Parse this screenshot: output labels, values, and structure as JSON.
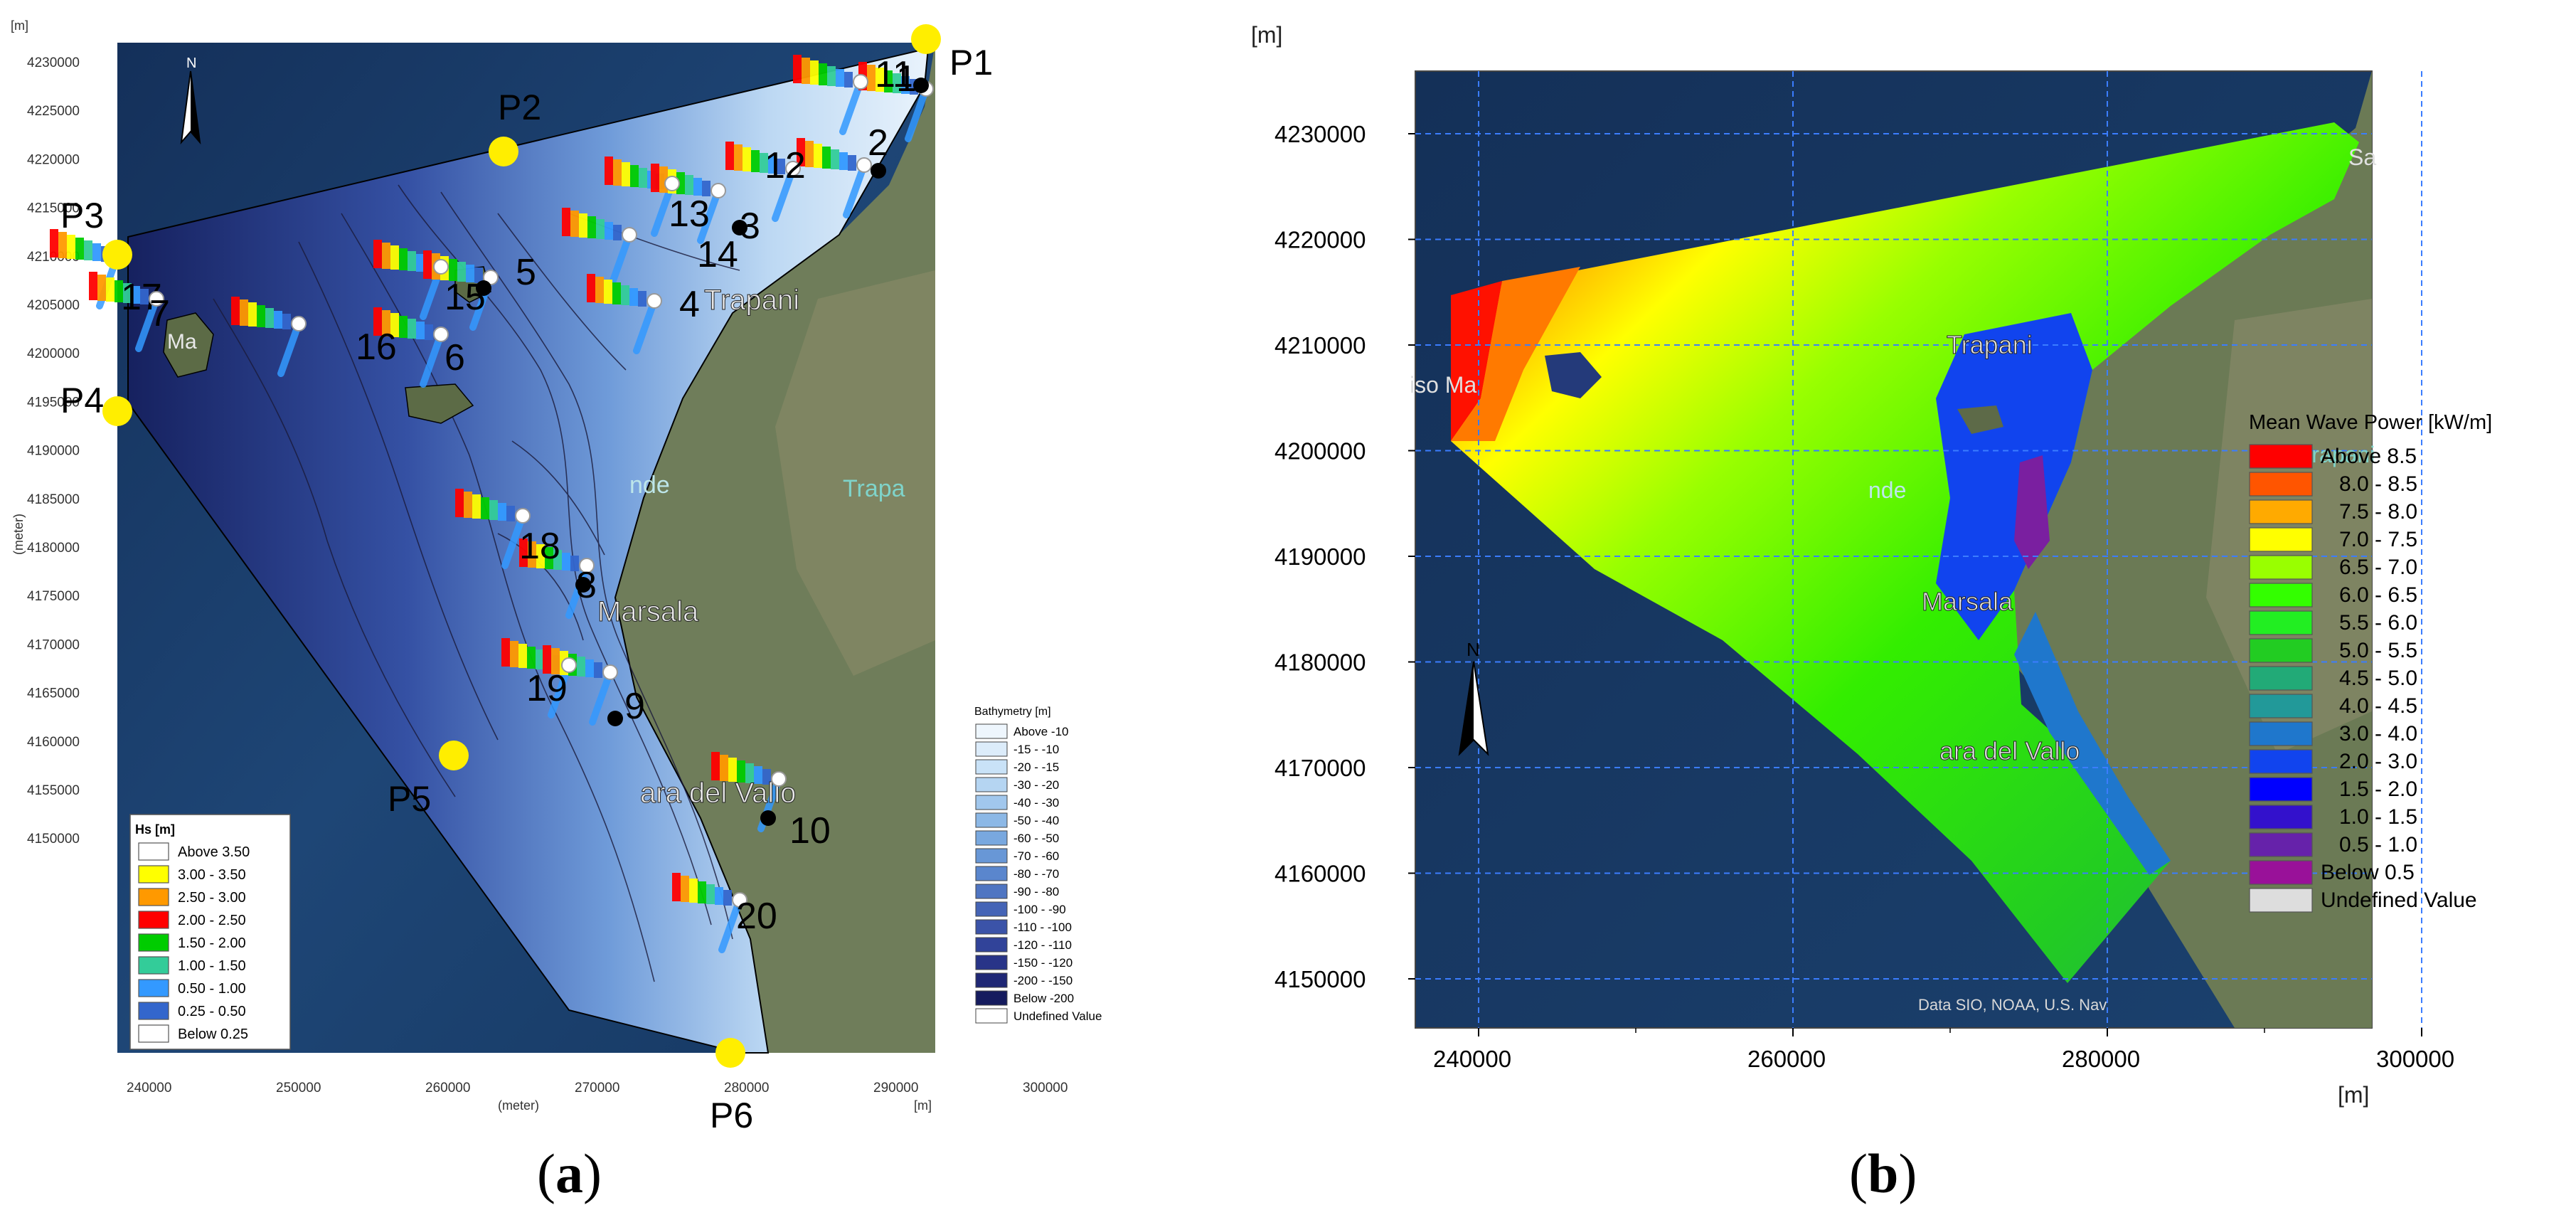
{
  "panel_a": {
    "label": "a",
    "axis_unit_top": "[m]",
    "axis_unit_right": "[m]",
    "x_axis_title": "(meter)",
    "y_axis_title": "(meter)",
    "y_ticks": [
      "4230000",
      "4225000",
      "4220000",
      "4215000",
      "4210000",
      "4205000",
      "4200000",
      "4195000",
      "4190000",
      "4185000",
      "4180000",
      "4175000",
      "4170000",
      "4165000",
      "4160000",
      "4155000",
      "4150000"
    ],
    "x_ticks": [
      "240000",
      "250000",
      "260000",
      "270000",
      "280000",
      "290000",
      "300000"
    ],
    "north_label": "N",
    "points": [
      "P1",
      "P2",
      "P3",
      "P4",
      "P5",
      "P6"
    ],
    "stations": [
      "11",
      "1",
      "2",
      "12",
      "13",
      "3",
      "14",
      "15",
      "5",
      "4",
      "17",
      "7",
      "16",
      "6",
      "18",
      "8",
      "19",
      "9",
      "10",
      "20"
    ],
    "place_labels": [
      "Trapani",
      "Marsala",
      "ara del Vallo",
      "Ma",
      "nde",
      "Trapa"
    ],
    "hs_legend": {
      "title": "Hs [m]",
      "items": [
        {
          "label": "Above 3.50",
          "color": "#ffffff"
        },
        {
          "label": "3.00 - 3.50",
          "color": "#ffff00"
        },
        {
          "label": "2.50 - 3.00",
          "color": "#ff9900"
        },
        {
          "label": "2.00 - 2.50",
          "color": "#ff0000"
        },
        {
          "label": "1.50 - 2.00",
          "color": "#00cc00"
        },
        {
          "label": "1.00 - 1.50",
          "color": "#33cc99"
        },
        {
          "label": "0.50 - 1.00",
          "color": "#3399ff"
        },
        {
          "label": "0.25 - 0.50",
          "color": "#3366cc"
        },
        {
          "label": "Below 0.25",
          "color": "#ffffff"
        }
      ]
    },
    "bathy_legend": {
      "title": "Bathymetry [m]",
      "items": [
        {
          "label": "Above  -10",
          "color": "#eef6fd"
        },
        {
          "label": "-15 -  -10",
          "color": "#dcecfa"
        },
        {
          "label": "-20 -  -15",
          "color": "#c9e2f7"
        },
        {
          "label": "-30 -  -20",
          "color": "#b5d5f2"
        },
        {
          "label": "-40 -  -30",
          "color": "#a1c7ed"
        },
        {
          "label": "-50 -  -40",
          "color": "#8cb8e6"
        },
        {
          "label": "-60 -  -50",
          "color": "#79a8df"
        },
        {
          "label": "-70 -  -60",
          "color": "#6897d6"
        },
        {
          "label": "-80 -  -70",
          "color": "#5a86cd"
        },
        {
          "label": "-90 -  -80",
          "color": "#4f75c2"
        },
        {
          "label": "-100 -  -90",
          "color": "#4564b6"
        },
        {
          "label": "-110 - -100",
          "color": "#3b53a8"
        },
        {
          "label": "-120 - -110",
          "color": "#314399"
        },
        {
          "label": "-150 - -120",
          "color": "#283488"
        },
        {
          "label": "-200 - -150",
          "color": "#1f2775"
        },
        {
          "label": "Below -200",
          "color": "#151b5e"
        },
        {
          "label": "Undefined Value",
          "color": "#ffffff"
        }
      ]
    }
  },
  "panel_b": {
    "label": "b",
    "axis_unit_top": "[m]",
    "axis_unit_bottom": "[m]",
    "y_ticks": [
      "4230000",
      "4220000",
      "4210000",
      "4200000",
      "4190000",
      "4180000",
      "4170000",
      "4160000",
      "4150000"
    ],
    "x_ticks": [
      "240000",
      "260000",
      "280000",
      "300000"
    ],
    "north_label": "N",
    "place_labels": [
      "Trapani",
      "Marsala",
      "ara del Vallo",
      "Trapani",
      "nde",
      "iso Ma",
      "Sa"
    ],
    "attribution": "Data SIO, NOAA, U.S. Nav",
    "power_legend": {
      "title": "Mean Wave Power [kW/m]",
      "items": [
        {
          "label": "Above 8.5",
          "color": "#ff0000"
        },
        {
          "label": "8.0 - 8.5",
          "color": "#ff5500"
        },
        {
          "label": "7.5 - 8.0",
          "color": "#ffaa00"
        },
        {
          "label": "7.0 - 7.5",
          "color": "#ffff00"
        },
        {
          "label": "6.5 - 7.0",
          "color": "#99ff00"
        },
        {
          "label": "6.0 - 6.5",
          "color": "#33ff00"
        },
        {
          "label": "5.5 - 6.0",
          "color": "#22ee22"
        },
        {
          "label": "5.0 - 5.5",
          "color": "#22cc22"
        },
        {
          "label": "4.5 - 5.0",
          "color": "#22aa77"
        },
        {
          "label": "4.0 - 4.5",
          "color": "#229999"
        },
        {
          "label": "3.0 - 4.0",
          "color": "#1f77cc"
        },
        {
          "label": "2.0 - 3.0",
          "color": "#1144ee"
        },
        {
          "label": "1.5 - 2.0",
          "color": "#0000ff"
        },
        {
          "label": "1.0 - 1.5",
          "color": "#3311cc"
        },
        {
          "label": "0.5 - 1.0",
          "color": "#6622aa"
        },
        {
          "label": "Below 0.5",
          "color": "#991199"
        },
        {
          "label": "Undefined Value",
          "color": "#dddddd"
        }
      ]
    }
  }
}
